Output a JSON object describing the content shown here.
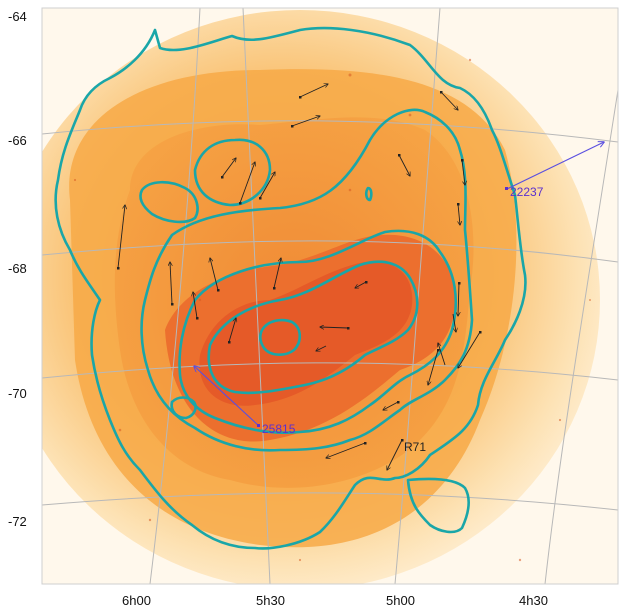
{
  "map": {
    "dec_labels": [
      "-64",
      "-66",
      "-68",
      "-70",
      "-72"
    ],
    "ra_labels": [
      "6h00",
      "5h30",
      "5h00",
      "4h30"
    ],
    "stars": [
      {
        "label": "22237",
        "color": "#5a2fd0"
      },
      {
        "label": "25815",
        "color": "#5a2fd0"
      },
      {
        "label": "R71",
        "color": "#222222"
      }
    ],
    "colors": {
      "background_low": "#fff7e8",
      "density_mid": "#f7ad43",
      "density_high": "#ef7a2f",
      "density_core": "#e85c2a",
      "contour": "#1aa6a8",
      "grid": "#b8b8b8",
      "arrow": "#222222",
      "highlight_arrow": "#5a4fe0"
    }
  }
}
